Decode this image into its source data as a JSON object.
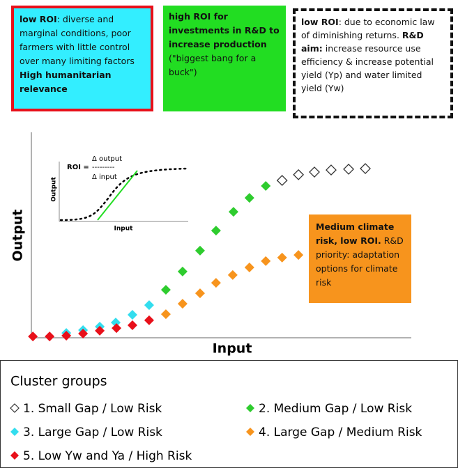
{
  "boxes": [
    {
      "runs": [
        {
          "text": "low ROI",
          "bold": true
        },
        {
          "text": ": diverse and marginal conditions, poor farmers with little control over many limiting factors ",
          "bold": false
        },
        {
          "text": "High humanitarian relevance",
          "bold": true
        }
      ]
    },
    {
      "runs": [
        {
          "text": "high ROI for investments in R&D to increase production",
          "bold": true
        },
        {
          "text": " (\"biggest bang for a buck\")",
          "bold": false
        }
      ]
    },
    {
      "runs": [
        {
          "text": "low ROI",
          "bold": true
        },
        {
          "text": ": due to economic law of diminishing returns. ",
          "bold": false
        },
        {
          "text": "R&D aim:",
          "bold": true
        },
        {
          "text": " increase resource use efficiency & increase potential yield (Yp) and water limited yield (Yw)",
          "bold": false
        }
      ]
    },
    {
      "runs": [
        {
          "text": "Medium climate risk, low ROI.",
          "bold": true
        },
        {
          "text": " R&D priority: adaptation options for climate risk",
          "bold": false
        }
      ]
    }
  ],
  "chart_data": {
    "type": "scatter",
    "xlabel": "Input",
    "ylabel": "Output",
    "xlim": [
      0,
      100
    ],
    "ylim": [
      0,
      100
    ],
    "inset": {
      "ylabel": "Output",
      "xlabel": "Input",
      "numerator": "Δ output",
      "lhs": "ROI =",
      "bar": "---------",
      "denominator": "Δ  input"
    },
    "legend_title": "Cluster groups",
    "series": [
      {
        "name": "1. Small Gap / Low Risk",
        "color": "#ffffff",
        "edgecolor": "#333333",
        "x": [
          66,
          70.3,
          74.5,
          78.9,
          83.5,
          87.9
        ],
        "values": [
          76.5,
          79.3,
          80.6,
          81.6,
          82,
          82.3
        ]
      },
      {
        "name": "2. Medium Gap / Low Risk",
        "color": "#2ecc2e",
        "x": [
          35.4,
          39.8,
          44.4,
          48.6,
          53.2,
          57.4,
          61.7
        ],
        "values": [
          23.1,
          32,
          42.2,
          52,
          61.2,
          68,
          73.8
        ]
      },
      {
        "name": "3. Large Gap / Low Risk",
        "color": "#33ddee",
        "x": [
          9.2,
          13.6,
          18,
          22.2,
          26.6,
          31
        ],
        "values": [
          2,
          3.4,
          5.1,
          7.1,
          10.9,
          15.6
        ]
      },
      {
        "name": "4. Large Gap / Medium Risk",
        "color": "#f7941d",
        "x": [
          35.4,
          39.8,
          44.4,
          48.6,
          53,
          57.4,
          61.7,
          66,
          70.3
        ],
        "values": [
          11.2,
          16.3,
          21.4,
          26.5,
          30.3,
          34,
          37.1,
          38.8,
          40.1
        ]
      },
      {
        "name": "5. Low Yw and Ya / High Risk",
        "color": "#e8101a",
        "x": [
          0.4,
          4.8,
          9.2,
          13.6,
          18,
          22.4,
          26.6,
          31
        ],
        "values": [
          0.3,
          0.3,
          0.7,
          1.7,
          3.1,
          4.4,
          5.8,
          8.2
        ]
      }
    ]
  }
}
